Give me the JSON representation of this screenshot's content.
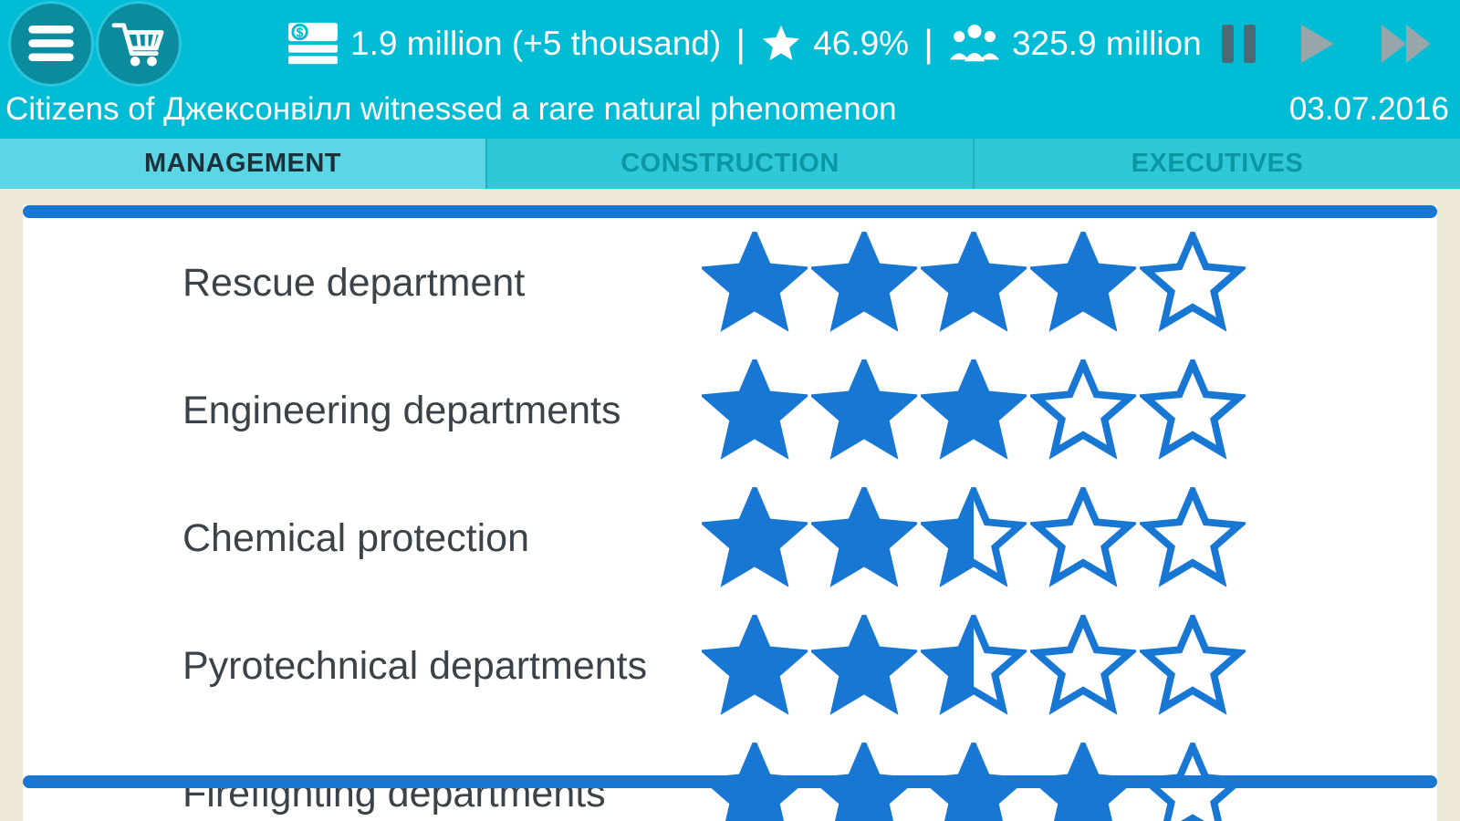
{
  "colors": {
    "header_bg": "#00bcd4",
    "tabbar_bg": "#2fc8d9",
    "active_tab_bg": "#5cd6e5",
    "tab_active_text": "#1b323c",
    "tab_inactive_text": "#0a97a4",
    "icon_circle": "#0b8c9e",
    "star_blue": "#1877d2",
    "bar_blue": "#1877d2",
    "page_bg": "#ede7d6",
    "label_text": "#3b4349",
    "pause_color": "#4d6a74",
    "play_color": "#97a6ab"
  },
  "topbar": {
    "money_value": "1.9 million (+5 thousand)",
    "separator": "|",
    "rating_value": "46.9%",
    "population_value": "325.9 million"
  },
  "news": {
    "headline": "Citizens of Джексонвілл witnessed a rare natural phenomenon",
    "date": "03.07.2016"
  },
  "tabs": [
    {
      "label": "MANAGEMENT",
      "active": true
    },
    {
      "label": "CONSTRUCTION",
      "active": false
    },
    {
      "label": "EXECUTIVES",
      "active": false
    }
  ],
  "departments": [
    {
      "name": "Rescue department",
      "rating": 4,
      "max": 5
    },
    {
      "name": "Engineering departments",
      "rating": 3,
      "max": 5
    },
    {
      "name": "Chemical protection",
      "rating": 2.5,
      "max": 5
    },
    {
      "name": "Pyrotechnical departments",
      "rating": 2.5,
      "max": 5
    },
    {
      "name": "Firefighting departments",
      "rating": 4,
      "max": 5
    }
  ]
}
